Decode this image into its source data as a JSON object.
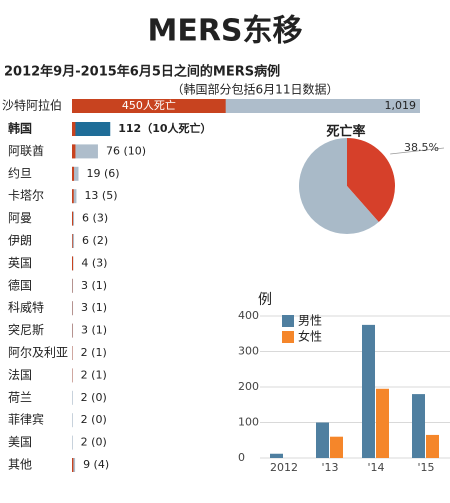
{
  "title": "MERS东移",
  "chart_data": [
    {
      "type": "hbar",
      "title": "2012年9月-2015年6月5日之间的MERS病例",
      "subtitle": "（韩国部分包括6月11日数据）",
      "categories": [
        "沙特阿拉伯",
        "韩国",
        "阿联酋",
        "约旦",
        "卡塔尔",
        "阿曼",
        "伊朗",
        "英国",
        "德国",
        "科威特",
        "突尼斯",
        "阿尔及利亚",
        "法国",
        "荷兰",
        "菲律宾",
        "美国",
        "其他"
      ],
      "highlight": 1,
      "series": [
        {
          "color": "#aebdcb",
          "highlight_color": "#1f6d98",
          "values": [
            1019,
            112,
            76,
            19,
            13,
            6,
            6,
            4,
            3,
            3,
            3,
            2,
            2,
            2,
            2,
            2,
            9
          ],
          "value_labels": [
            "1,019",
            "112（10人死亡）",
            "76 (10)",
            "19 (6)",
            "13 (5)",
            "6 (3)",
            "6 (2)",
            "4 (3)",
            "3 (1)",
            "3 (1)",
            "3 (1)",
            "2 (1)",
            "2 (1)",
            "2 (0)",
            "2 (0)",
            "2 (0)",
            "9 (4)"
          ]
        },
        {
          "color": "#c8431f",
          "values": [
            450,
            10,
            10,
            6,
            5,
            3,
            2,
            3,
            1,
            1,
            1,
            1,
            1,
            0,
            0,
            0,
            4
          ],
          "value_labels": [
            "450人死亡",
            null,
            null,
            null,
            null,
            null,
            null,
            null,
            null,
            null,
            null,
            null,
            null,
            null,
            null,
            null,
            null
          ]
        }
      ]
    },
    {
      "type": "pie",
      "title": "死亡率",
      "values": [
        38.5,
        61.5
      ],
      "value_labels": [
        "38.5%",
        null
      ],
      "colors": [
        "#d6402a",
        "#a9bac8"
      ]
    },
    {
      "type": "bar",
      "y_label": "例",
      "categories": [
        "2012",
        "'13",
        "'14",
        "'15"
      ],
      "series": [
        {
          "name": "男性",
          "color": "#4f7fa0",
          "values": [
            12,
            100,
            375,
            180
          ]
        },
        {
          "name": "女性",
          "color": "#f5862a",
          "values": [
            0,
            60,
            195,
            65
          ]
        }
      ],
      "ylim": [
        0,
        400
      ],
      "yticks": [
        0,
        100,
        200,
        300,
        400
      ],
      "grid": true,
      "legend": "top-left"
    }
  ]
}
